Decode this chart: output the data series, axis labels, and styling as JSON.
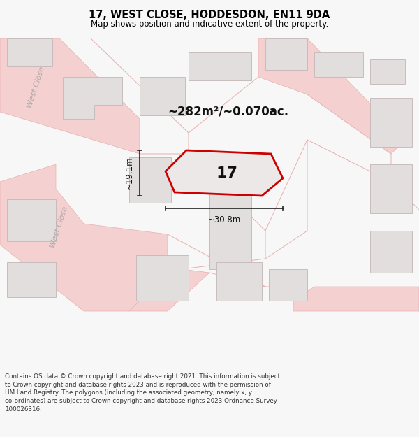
{
  "title_line1": "17, WEST CLOSE, HODDESDON, EN11 9DA",
  "title_line2": "Map shows position and indicative extent of the property.",
  "area_text": "~282m²/~0.070ac.",
  "property_number": "17",
  "dim_height": "~19.1m",
  "dim_width": "~30.8m",
  "footer_text": "Contains OS data © Crown copyright and database right 2021. This information is subject to Crown copyright and database rights 2023 and is reproduced with the permission of HM Land Registry. The polygons (including the associated geometry, namely x, y co-ordinates) are subject to Crown copyright and database rights 2023 Ordnance Survey 100026316.",
  "bg_color": "#f7f7f7",
  "map_bg": "#f0eeee",
  "building_fill": "#e2dede",
  "building_stroke": "#c8bcbc",
  "road_fill": "#f5d0d0",
  "road_stroke": "#e8b0b0",
  "property_fill": "#ede8e8",
  "property_stroke": "#cc0000",
  "street_label_color": "#b0a8a8",
  "title_color": "#000000",
  "dim_color": "#222222",
  "footer_bg": "#ffffff",
  "footer_color": "#333333"
}
